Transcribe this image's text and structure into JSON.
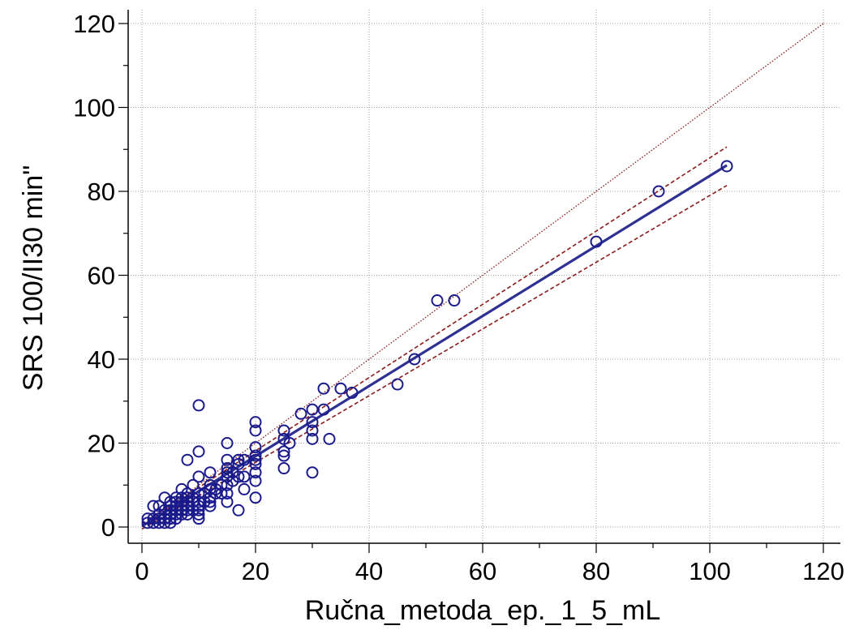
{
  "chart_data": {
    "type": "scatter",
    "xlabel": "Ručna_metoda_ep._1_5_mL",
    "ylabel": "SRS 100/II30 min\"",
    "xlim": [
      0,
      120
    ],
    "ylim": [
      0,
      120
    ],
    "x_ticks": [
      0,
      20,
      40,
      60,
      80,
      100,
      120
    ],
    "y_ticks": [
      0,
      20,
      40,
      60,
      80,
      100,
      120
    ],
    "grid": true,
    "colors": {
      "points": "#1a1a8c",
      "regression": "#2e3192",
      "confidence": "#8b1a1a",
      "identity": "#8b1a1a",
      "grid": "#a0a0a0"
    },
    "points": [
      [
        1,
        2
      ],
      [
        1,
        1
      ],
      [
        2,
        1
      ],
      [
        2,
        2
      ],
      [
        2,
        5
      ],
      [
        3,
        1
      ],
      [
        3,
        2
      ],
      [
        3,
        3
      ],
      [
        3,
        5
      ],
      [
        4,
        1
      ],
      [
        4,
        2
      ],
      [
        4,
        4
      ],
      [
        4,
        7
      ],
      [
        5,
        1
      ],
      [
        5,
        2
      ],
      [
        5,
        3
      ],
      [
        5,
        4
      ],
      [
        5,
        5
      ],
      [
        5,
        6
      ],
      [
        6,
        2
      ],
      [
        6,
        3
      ],
      [
        6,
        4
      ],
      [
        6,
        5
      ],
      [
        6,
        6
      ],
      [
        6,
        7
      ],
      [
        7,
        3
      ],
      [
        7,
        4
      ],
      [
        7,
        5
      ],
      [
        7,
        6
      ],
      [
        7,
        7
      ],
      [
        7,
        9
      ],
      [
        8,
        3
      ],
      [
        8,
        4
      ],
      [
        8,
        5
      ],
      [
        8,
        6
      ],
      [
        8,
        7
      ],
      [
        8,
        8
      ],
      [
        8,
        16
      ],
      [
        9,
        4
      ],
      [
        9,
        6
      ],
      [
        9,
        7
      ],
      [
        9,
        10
      ],
      [
        10,
        2
      ],
      [
        10,
        3
      ],
      [
        10,
        4
      ],
      [
        10,
        5
      ],
      [
        10,
        6
      ],
      [
        10,
        8
      ],
      [
        10,
        12
      ],
      [
        10,
        18
      ],
      [
        10,
        29
      ],
      [
        11,
        6
      ],
      [
        11,
        8
      ],
      [
        12,
        5
      ],
      [
        12,
        6
      ],
      [
        12,
        7
      ],
      [
        12,
        9
      ],
      [
        12,
        10
      ],
      [
        12,
        13
      ],
      [
        13,
        8
      ],
      [
        13,
        9
      ],
      [
        14,
        8
      ],
      [
        14,
        10
      ],
      [
        15,
        6
      ],
      [
        15,
        8
      ],
      [
        15,
        10
      ],
      [
        15,
        12
      ],
      [
        15,
        13
      ],
      [
        15,
        14
      ],
      [
        15,
        16
      ],
      [
        15,
        20
      ],
      [
        16,
        11
      ],
      [
        16,
        13
      ],
      [
        17,
        4
      ],
      [
        17,
        12
      ],
      [
        17,
        15
      ],
      [
        17,
        16
      ],
      [
        18,
        9
      ],
      [
        18,
        12
      ],
      [
        18,
        16
      ],
      [
        20,
        7
      ],
      [
        20,
        11
      ],
      [
        20,
        13
      ],
      [
        20,
        15
      ],
      [
        20,
        16
      ],
      [
        20,
        17
      ],
      [
        20,
        19
      ],
      [
        20,
        23
      ],
      [
        20,
        25
      ],
      [
        25,
        14
      ],
      [
        25,
        17
      ],
      [
        25,
        18
      ],
      [
        25,
        21
      ],
      [
        25,
        23
      ],
      [
        26,
        20
      ],
      [
        28,
        27
      ],
      [
        30,
        13
      ],
      [
        30,
        21
      ],
      [
        30,
        23
      ],
      [
        30,
        25
      ],
      [
        30,
        28
      ],
      [
        32,
        28
      ],
      [
        32,
        33
      ],
      [
        33,
        21
      ],
      [
        35,
        33
      ],
      [
        37,
        32
      ],
      [
        45,
        34
      ],
      [
        48,
        40
      ],
      [
        52,
        54
      ],
      [
        55,
        54
      ],
      [
        80,
        68
      ],
      [
        91,
        80
      ],
      [
        103,
        86
      ]
    ],
    "regression_line": {
      "x": [
        0,
        103
      ],
      "y": [
        0.2,
        86.2
      ]
    },
    "ci_upper": {
      "x": [
        0,
        103
      ],
      "y": [
        0.7,
        90.6
      ]
    },
    "ci_lower": {
      "x": [
        0,
        103
      ],
      "y": [
        -0.5,
        81.4
      ]
    },
    "identity_line": {
      "x": [
        0,
        120
      ],
      "y": [
        0,
        120
      ]
    }
  }
}
